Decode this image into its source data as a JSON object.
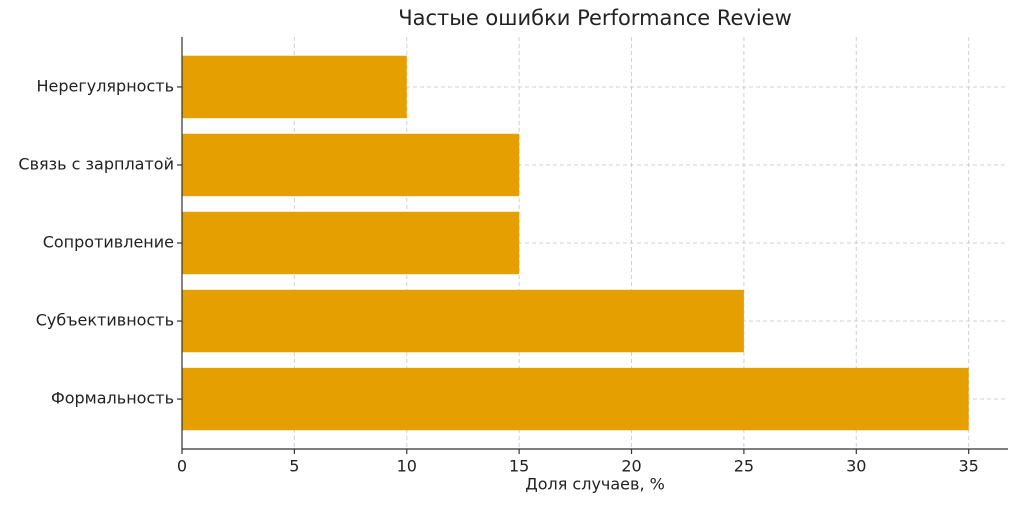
{
  "chart_data": {
    "type": "barh",
    "title": "Частые ошибки Performance Review",
    "xlabel": "Доля случаев, %",
    "categories": [
      "Нерегулярность",
      "Связь с зарплатой",
      "Сопротивление",
      "Субъективность",
      "Формальность"
    ],
    "values": [
      10,
      15,
      15,
      25,
      35
    ],
    "color": "#e69f00",
    "xlim": [
      0,
      36.75
    ],
    "xticks": [
      0,
      5,
      10,
      15,
      20,
      25,
      30,
      35
    ],
    "grid": true
  }
}
